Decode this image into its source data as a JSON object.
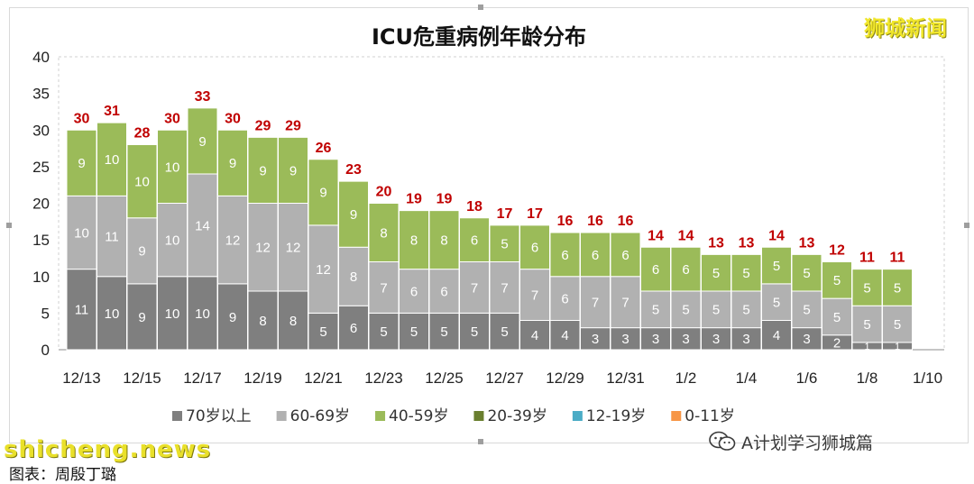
{
  "chart_data": {
    "type": "bar",
    "stacked": true,
    "title": "ICU危重病例年龄分布",
    "xlabel": "",
    "ylabel": "",
    "ylim": [
      0,
      40
    ],
    "yticks": [
      0,
      5,
      10,
      15,
      20,
      25,
      30,
      35,
      40
    ],
    "grid": false,
    "legend_position": "bottom",
    "x_tick_labels": [
      "12/13",
      "12/15",
      "12/17",
      "12/19",
      "12/21",
      "12/23",
      "12/25",
      "12/27",
      "12/29",
      "12/31",
      "1/2",
      "1/4",
      "1/6",
      "1/8",
      "1/10"
    ],
    "categories": [
      "12/13",
      "12/14",
      "12/15",
      "12/16",
      "12/17",
      "12/18",
      "12/19",
      "12/20",
      "12/21",
      "12/22",
      "12/23",
      "12/24",
      "12/25",
      "12/26",
      "12/27",
      "12/28",
      "12/29",
      "12/30",
      "12/31",
      "1/1",
      "1/2",
      "1/3",
      "1/4",
      "1/5",
      "1/6",
      "1/7",
      "1/8",
      "1/9",
      "1/10"
    ],
    "series": [
      {
        "name": "70岁以上",
        "color": "#7f7f7f",
        "values": [
          11,
          10,
          9,
          10,
          10,
          9,
          8,
          8,
          5,
          6,
          5,
          5,
          5,
          5,
          5,
          4,
          4,
          3,
          3,
          3,
          3,
          3,
          3,
          4,
          3,
          2,
          1,
          1,
          null
        ]
      },
      {
        "name": "60-69岁",
        "color": "#b1b1b1",
        "values": [
          10,
          11,
          9,
          10,
          14,
          12,
          12,
          12,
          12,
          8,
          7,
          6,
          6,
          7,
          7,
          7,
          6,
          7,
          7,
          5,
          5,
          5,
          5,
          5,
          5,
          5,
          5,
          5,
          null
        ]
      },
      {
        "name": "40-59岁",
        "color": "#9bbb59",
        "values": [
          9,
          10,
          10,
          10,
          9,
          9,
          9,
          9,
          9,
          9,
          8,
          8,
          8,
          6,
          5,
          6,
          6,
          6,
          6,
          6,
          6,
          5,
          5,
          5,
          5,
          5,
          5,
          5,
          null
        ]
      },
      {
        "name": "20-39岁",
        "color": "#6a7f2f",
        "values": [
          0,
          0,
          0,
          0,
          0,
          0,
          0,
          0,
          0,
          0,
          0,
          0,
          0,
          0,
          0,
          0,
          0,
          0,
          0,
          0,
          0,
          0,
          0,
          0,
          0,
          0,
          0,
          0,
          null
        ]
      },
      {
        "name": "12-19岁",
        "color": "#4bacc6",
        "values": [
          0,
          0,
          0,
          0,
          0,
          0,
          0,
          0,
          0,
          0,
          0,
          0,
          0,
          0,
          0,
          0,
          0,
          0,
          0,
          0,
          0,
          0,
          0,
          0,
          0,
          0,
          0,
          0,
          null
        ]
      },
      {
        "name": "0-11岁",
        "color": "#f79646",
        "values": [
          0,
          0,
          0,
          0,
          0,
          0,
          0,
          0,
          0,
          0,
          0,
          0,
          0,
          0,
          0,
          0,
          0,
          0,
          0,
          0,
          0,
          0,
          0,
          0,
          0,
          0,
          0,
          0,
          null
        ]
      }
    ],
    "totals": [
      30,
      31,
      28,
      30,
      33,
      30,
      29,
      29,
      26,
      23,
      20,
      19,
      19,
      18,
      17,
      17,
      16,
      16,
      16,
      14,
      14,
      13,
      13,
      14,
      13,
      12,
      11,
      11,
      null
    ],
    "total_label_color": "#c00000"
  },
  "watermarks": {
    "top_right": "狮城新闻",
    "bottom_left": "shicheng.news"
  },
  "wechat_tag": {
    "icon": "wechat-icon",
    "label": "A计划学习狮城篇"
  },
  "source_line": "图表：周殷丁璐"
}
